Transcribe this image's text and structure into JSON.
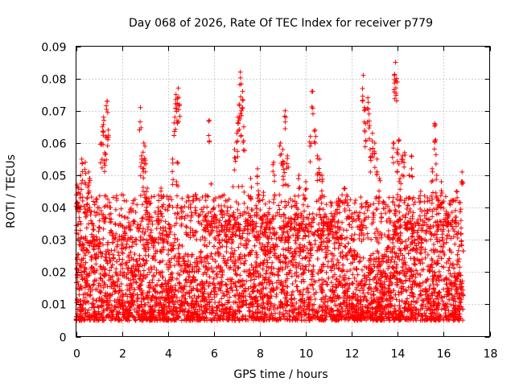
{
  "chart_data": {
    "type": "scatter",
    "title": "Day 068 of 2026, Rate Of TEC Index for receiver p779",
    "xlabel": "GPS time / hours",
    "ylabel": "ROTI / TECUs",
    "xlim": [
      0,
      18
    ],
    "ylim": [
      0,
      0.09
    ],
    "xticks": [
      "0",
      "2",
      "4",
      "6",
      "8",
      "10",
      "12",
      "14",
      "16",
      "18"
    ],
    "yticks": [
      "0",
      "0.01",
      "0.02",
      "0.03",
      "0.04",
      "0.05",
      "0.06",
      "0.07",
      "0.08",
      "0.09"
    ],
    "grid": true,
    "marker": "+",
    "color": "#ff0000",
    "data_x_range": [
      0,
      16.85
    ],
    "series": [
      {
        "name": "ROTI",
        "points": [
          [
            0.05,
            0.047
          ],
          [
            0.1,
            0.046
          ],
          [
            0.2,
            0.05
          ],
          [
            0.25,
            0.055
          ],
          [
            0.4,
            0.054
          ],
          [
            0.5,
            0.043
          ],
          [
            0.55,
            0.051
          ],
          [
            0.6,
            0.049
          ],
          [
            1.0,
            0.038
          ],
          [
            1.1,
            0.06
          ],
          [
            1.15,
            0.065
          ],
          [
            1.2,
            0.068
          ],
          [
            1.25,
            0.057
          ],
          [
            1.3,
            0.062
          ],
          [
            1.35,
            0.073
          ],
          [
            1.4,
            0.064
          ],
          [
            1.5,
            0.04
          ],
          [
            1.7,
            0.035
          ],
          [
            2.0,
            0.031
          ],
          [
            2.1,
            0.037
          ],
          [
            2.8,
            0.071
          ],
          [
            2.85,
            0.056
          ],
          [
            2.9,
            0.052
          ],
          [
            2.95,
            0.06
          ],
          [
            3.0,
            0.059
          ],
          [
            3.05,
            0.043
          ],
          [
            3.1,
            0.046
          ],
          [
            3.2,
            0.042
          ],
          [
            3.6,
            0.039
          ],
          [
            3.7,
            0.046
          ],
          [
            4.2,
            0.055
          ],
          [
            4.3,
            0.068
          ],
          [
            4.35,
            0.075
          ],
          [
            4.4,
            0.072
          ],
          [
            4.45,
            0.077
          ],
          [
            4.5,
            0.072
          ],
          [
            4.4,
            0.054
          ],
          [
            4.6,
            0.04
          ],
          [
            5.2,
            0.044
          ],
          [
            5.6,
            0.036
          ],
          [
            5.8,
            0.067
          ],
          [
            6.0,
            0.042
          ],
          [
            6.6,
            0.04
          ],
          [
            6.9,
            0.058
          ],
          [
            7.0,
            0.063
          ],
          [
            7.05,
            0.068
          ],
          [
            7.1,
            0.072
          ],
          [
            7.15,
            0.082
          ],
          [
            7.2,
            0.07
          ],
          [
            7.25,
            0.076
          ],
          [
            7.3,
            0.065
          ],
          [
            7.6,
            0.049
          ],
          [
            7.9,
            0.052
          ],
          [
            8.6,
            0.054
          ],
          [
            8.9,
            0.06
          ],
          [
            9.0,
            0.058
          ],
          [
            9.05,
            0.054
          ],
          [
            9.1,
            0.07
          ],
          [
            9.2,
            0.056
          ],
          [
            9.7,
            0.05
          ],
          [
            10.0,
            0.048
          ],
          [
            10.2,
            0.062
          ],
          [
            10.3,
            0.076
          ],
          [
            10.4,
            0.064
          ],
          [
            10.5,
            0.056
          ],
          [
            10.6,
            0.055
          ],
          [
            10.7,
            0.05
          ],
          [
            11.4,
            0.041
          ],
          [
            11.7,
            0.046
          ],
          [
            12.0,
            0.038
          ],
          [
            12.5,
            0.081
          ],
          [
            12.55,
            0.071
          ],
          [
            12.6,
            0.066
          ],
          [
            12.7,
            0.074
          ],
          [
            12.75,
            0.069
          ],
          [
            12.8,
            0.058
          ],
          [
            12.9,
            0.063
          ],
          [
            13.0,
            0.06
          ],
          [
            13.1,
            0.055
          ],
          [
            13.2,
            0.049
          ],
          [
            13.8,
            0.06
          ],
          [
            13.85,
            0.081
          ],
          [
            13.9,
            0.085
          ],
          [
            13.95,
            0.08
          ],
          [
            14.0,
            0.058
          ],
          [
            14.05,
            0.061
          ],
          [
            14.1,
            0.049
          ],
          [
            14.2,
            0.056
          ],
          [
            14.3,
            0.057
          ],
          [
            14.5,
            0.05
          ],
          [
            14.6,
            0.056
          ],
          [
            15.0,
            0.045
          ],
          [
            15.3,
            0.043
          ],
          [
            15.5,
            0.052
          ],
          [
            15.6,
            0.066
          ],
          [
            15.65,
            0.061
          ],
          [
            15.7,
            0.05
          ],
          [
            15.9,
            0.048
          ],
          [
            16.2,
            0.038
          ],
          [
            16.5,
            0.037
          ],
          [
            16.55,
            0.045
          ],
          [
            16.8,
            0.051
          ],
          [
            16.75,
            0.036
          ]
        ]
      }
    ]
  }
}
